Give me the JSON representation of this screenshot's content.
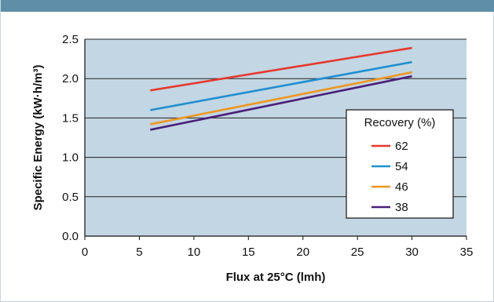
{
  "chart_data": {
    "type": "line",
    "xlabel": "Flux at 25°C (lmh)",
    "ylabel": "Specific Energy (kW·h/m³)",
    "xlim": [
      0,
      35
    ],
    "ylim": [
      0,
      2.5
    ],
    "x_ticks": [
      "0",
      "5",
      "10",
      "15",
      "20",
      "25",
      "30",
      "35"
    ],
    "y_ticks": [
      "0.0",
      "0.5",
      "1.0",
      "1.5",
      "2.0",
      "2.5"
    ],
    "grid": "horizontal",
    "legend": {
      "title": "Recovery (%)",
      "placement": "lower-right"
    },
    "series": [
      {
        "name": "62",
        "color": "#e8372b",
        "x": [
          6,
          30
        ],
        "y": [
          1.85,
          2.39
        ]
      },
      {
        "name": "54",
        "color": "#1f8fd0",
        "x": [
          6,
          30
        ],
        "y": [
          1.6,
          2.21
        ]
      },
      {
        "name": "46",
        "color": "#f0961e",
        "x": [
          6,
          30
        ],
        "y": [
          1.42,
          2.08
        ]
      },
      {
        "name": "38",
        "color": "#4a1f7a",
        "x": [
          6,
          30
        ],
        "y": [
          1.35,
          2.03
        ]
      }
    ],
    "plot_background": "#c2d6e3"
  }
}
